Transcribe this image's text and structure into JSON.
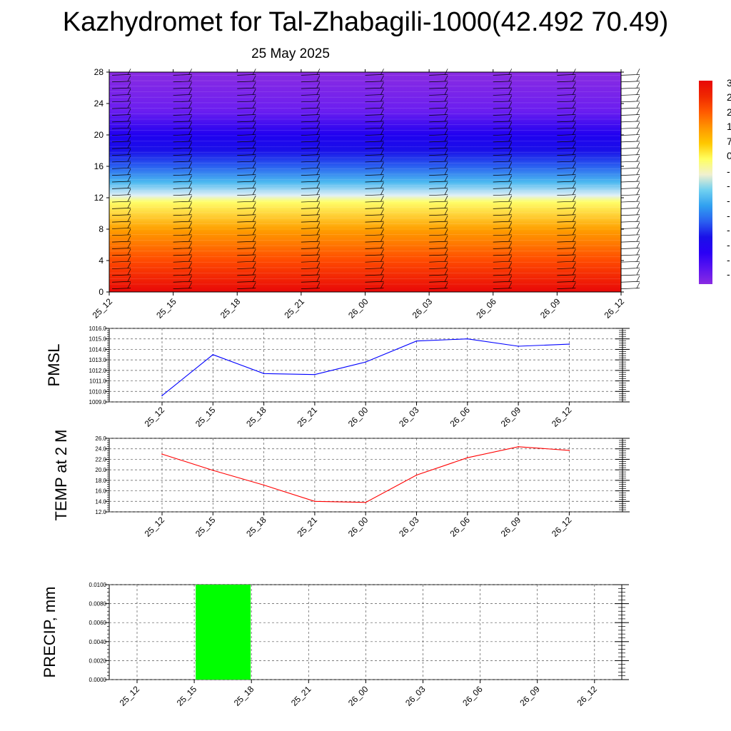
{
  "title": "Kazhydromet for Tal-Zhabagili-1000(42.492 70.49)",
  "subtitle": "25 May 2025",
  "chart_data": [
    {
      "type": "heatmap",
      "x_ticks": [
        "25_12",
        "25_15",
        "25_18",
        "25_21",
        "26_00",
        "26_03",
        "26_06",
        "26_09",
        "26_12"
      ],
      "y_ticks": [
        "0",
        "4",
        "8",
        "12",
        "16",
        "20",
        "24",
        "28"
      ],
      "ylim": [
        0,
        28
      ],
      "colorbar_labels": [
        "3",
        "2",
        "2",
        "1",
        "7",
        "0",
        "-",
        "-",
        "-",
        "-",
        "-",
        "-",
        "-",
        "-"
      ],
      "color_scale": [
        "#8a2be2",
        "#5a14f0",
        "#2a00f5",
        "#1a10e8",
        "#2a60f0",
        "#30a0f0",
        "#70d0f0",
        "#f0f0d0",
        "#ffff60",
        "#ffc800",
        "#ff9600",
        "#ff5a00",
        "#f02800",
        "#e80808"
      ],
      "profile": [
        {
          "level": 0,
          "color": "#e80808"
        },
        {
          "level": 4,
          "color": "#ff4a00"
        },
        {
          "level": 8,
          "color": "#ffa000"
        },
        {
          "level": 11.5,
          "color": "#ffff6a"
        },
        {
          "level": 12.3,
          "color": "#e0f0f6"
        },
        {
          "level": 14,
          "color": "#4ab8f0"
        },
        {
          "level": 16,
          "color": "#2a60f0"
        },
        {
          "level": 18,
          "color": "#1a10e8"
        },
        {
          "level": 20,
          "color": "#2000f0"
        },
        {
          "level": 23,
          "color": "#6a1ef0"
        },
        {
          "level": 28,
          "color": "#8a2be2"
        }
      ],
      "grid": false
    },
    {
      "type": "line",
      "ylabel": "PMSL",
      "categories": [
        "25_12",
        "25_15",
        "25_18",
        "25_21",
        "26_00",
        "26_03",
        "26_06",
        "26_09",
        "26_12"
      ],
      "y_ticks": [
        "1009.0",
        "1010.0",
        "1011.0",
        "1012.0",
        "1013.0",
        "1014.0",
        "1015.0",
        "1016.0"
      ],
      "ylim": [
        1009,
        1016
      ],
      "series": [
        {
          "values": [
            1009.6,
            1013.5,
            1011.7,
            1011.6,
            1012.8,
            1014.8,
            1015.0,
            1014.3,
            1014.5
          ],
          "color": "#0000ff"
        }
      ],
      "grid": true
    },
    {
      "type": "line",
      "ylabel": "TEMP at 2 M",
      "categories": [
        "25_12",
        "25_15",
        "25_18",
        "25_21",
        "26_00",
        "26_03",
        "26_06",
        "26_09",
        "26_12"
      ],
      "y_ticks": [
        "12.0",
        "14.0",
        "16.0",
        "18.0",
        "20.0",
        "22.0",
        "24.0",
        "26.0"
      ],
      "ylim": [
        12,
        26
      ],
      "series": [
        {
          "values": [
            23.0,
            19.9,
            17.1,
            14.0,
            13.8,
            19.0,
            22.3,
            24.4,
            23.7
          ],
          "color": "#ff0000"
        }
      ],
      "grid": true
    },
    {
      "type": "bar",
      "ylabel": "PRECIP, mm",
      "categories": [
        "25_12",
        "25_15",
        "25_18",
        "25_21",
        "26_00",
        "26_03",
        "26_06",
        "26_09",
        "26_12"
      ],
      "y_ticks": [
        "0.0000",
        "0.0020",
        "0.0040",
        "0.0060",
        "0.0080",
        "0.0100"
      ],
      "ylim": [
        0,
        0.01
      ],
      "values": [
        0,
        0.01,
        0,
        0,
        0,
        0,
        0,
        0,
        0
      ],
      "color": "#00ff00",
      "grid": true
    }
  ]
}
